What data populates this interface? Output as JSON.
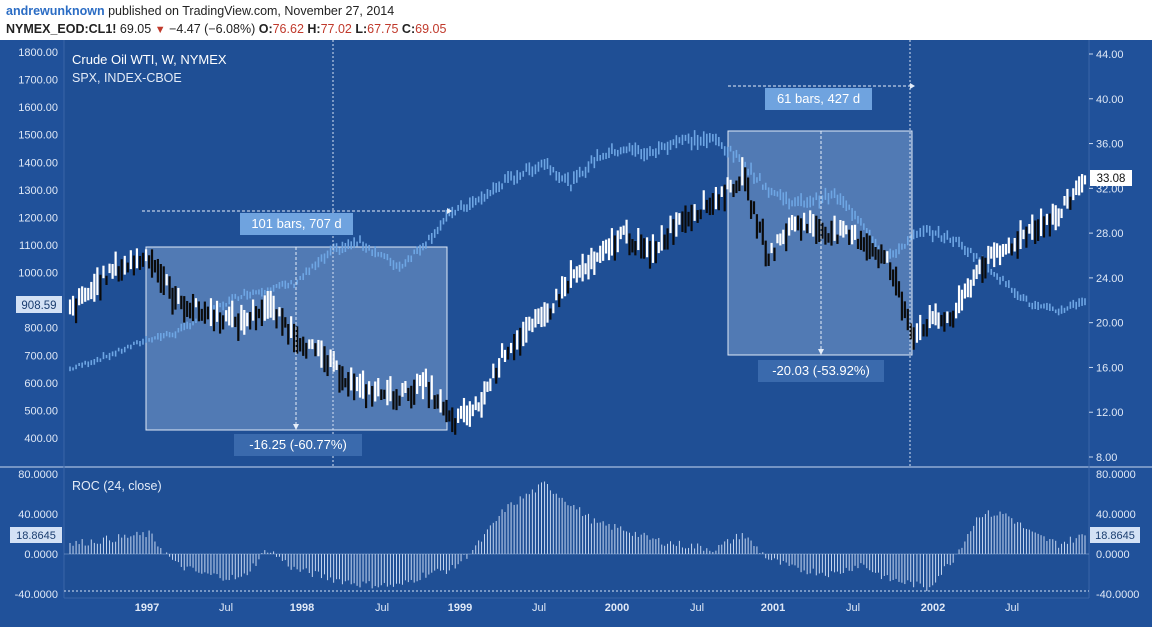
{
  "header": {
    "author": "andrewunknown",
    "published": "published on TradingView.com, November 27, 2014",
    "symbol": "NYMEX_EOD:CL1!",
    "last": "69.05",
    "change": "−4.47 (−6.08%)",
    "open_label": "O:",
    "open": "76.62",
    "high_label": "H:",
    "high": "77.02",
    "low_label": "L:",
    "low": "67.75",
    "close_label": "C:",
    "close": "69.05"
  },
  "colors": {
    "background": "#1f4f95",
    "bg_alt": "#20519a",
    "crude_up": "#ffffff",
    "crude_down": "#0b0b0b",
    "spx": "#6ea6e4",
    "box_fill": "#7a9fce",
    "label_bg": "#6fa3df",
    "roc": "#c5d6f0"
  },
  "legend": {
    "line1": "Crude Oil WTI, W, NYMEX",
    "line2": "SPX, INDEX-CBOE"
  },
  "measurements": {
    "m1_top": "101 bars, 707 d",
    "m1_bottom": "-16.25 (-60.77%)",
    "m2_top": "61 bars, 427 d",
    "m2_bottom": "-20.03 (-53.92%)"
  },
  "roc_title": "ROC (24, close)",
  "badges": {
    "spx_last": "908.59",
    "crude_last": "33.08",
    "roc_left": "18.8645",
    "roc_right": "18.8645"
  },
  "chart_data": [
    {
      "type": "bar",
      "title": "Crude Oil WTI, W, NYMEX",
      "series": [
        {
          "name": "Crude Oil WTI, W, NYMEX",
          "axis": "right",
          "x": [
            "1996-07",
            "1996-10",
            "1997-01",
            "1997-03",
            "1997-05",
            "1997-08",
            "1997-10",
            "1997-12",
            "1998-03",
            "1998-05",
            "1998-08",
            "1998-10",
            "1998-12",
            "1999-02",
            "1999-04",
            "1999-07",
            "1999-09",
            "1999-11",
            "2000-01",
            "2000-03",
            "2000-05",
            "2000-08",
            "2000-10",
            "2000-12",
            "2001-02",
            "2001-05",
            "2001-07",
            "2001-09",
            "2001-11",
            "2001-12",
            "2002-02",
            "2002-04",
            "2002-06",
            "2002-08",
            "2002-10",
            "2002-12"
          ],
          "values": [
            21.0,
            24.5,
            26.0,
            22.0,
            21.0,
            20.0,
            21.5,
            19.0,
            16.0,
            14.0,
            13.5,
            14.5,
            11.0,
            12.5,
            17.5,
            20.5,
            24.0,
            25.5,
            28.0,
            26.0,
            29.0,
            31.0,
            33.0,
            26.0,
            29.0,
            28.0,
            27.5,
            25.5,
            19.0,
            20.0,
            20.5,
            25.0,
            26.5,
            28.5,
            29.5,
            33.08
          ]
        },
        {
          "name": "SPX, INDEX-CBOE",
          "axis": "left",
          "x": [
            "1996-07",
            "1996-10",
            "1997-01",
            "1997-03",
            "1997-05",
            "1997-08",
            "1997-10",
            "1997-12",
            "1998-03",
            "1998-05",
            "1998-08",
            "1998-10",
            "1998-12",
            "1999-02",
            "1999-04",
            "1999-07",
            "1999-09",
            "1999-11",
            "2000-01",
            "2000-03",
            "2000-05",
            "2000-08",
            "2000-10",
            "2000-12",
            "2001-02",
            "2001-05",
            "2001-07",
            "2001-09",
            "2001-11",
            "2001-12",
            "2002-02",
            "2002-04",
            "2002-06",
            "2002-08",
            "2002-10",
            "2002-12"
          ],
          "values": [
            650,
            700,
            760,
            780,
            840,
            920,
            940,
            960,
            1080,
            1110,
            1020,
            1110,
            1220,
            1260,
            1330,
            1400,
            1320,
            1420,
            1450,
            1430,
            1480,
            1480,
            1400,
            1300,
            1250,
            1280,
            1190,
            1050,
            1130,
            1150,
            1120,
            1050,
            960,
            880,
            860,
            900
          ]
        }
      ],
      "ylim_left": [
        400,
        1800
      ],
      "ylim_right": [
        8,
        44
      ],
      "yticks_left": [
        "1800.00",
        "1700.00",
        "1600.00",
        "1500.00",
        "1400.00",
        "1300.00",
        "1200.00",
        "1100.00",
        "1000.00",
        "900.00",
        "800.00",
        "700.00",
        "600.00",
        "500.00",
        "400.00"
      ],
      "yticks_right": [
        "44.00",
        "40.00",
        "36.00",
        "32.00",
        "28.00",
        "24.00",
        "20.00",
        "16.00",
        "12.00",
        "8.00"
      ],
      "xticks": [
        "1997",
        "Jul",
        "1998",
        "Jul",
        "1999",
        "Jul",
        "2000",
        "Jul",
        "2001",
        "Jul",
        "2002",
        "Jul"
      ],
      "annotations": [
        {
          "text": "101 bars, 707 d",
          "kind": "date range"
        },
        {
          "text": "-16.25 (-60.77%)",
          "kind": "price range"
        },
        {
          "text": "61 bars, 427 d",
          "kind": "date range"
        },
        {
          "text": "-20.03 (-53.92%)",
          "kind": "price range"
        }
      ]
    },
    {
      "type": "bar",
      "title": "ROC (24, close)",
      "series": [
        {
          "name": "ROC (24, close)",
          "x": [
            "1996-07",
            "1996-10",
            "1997-01",
            "1997-03",
            "1997-05",
            "1997-08",
            "1997-10",
            "1997-12",
            "1998-03",
            "1998-05",
            "1998-08",
            "1998-10",
            "1998-12",
            "1999-02",
            "1999-04",
            "1999-07",
            "1999-09",
            "1999-11",
            "2000-01",
            "2000-03",
            "2000-05",
            "2000-08",
            "2000-10",
            "2000-12",
            "2001-02",
            "2001-05",
            "2001-07",
            "2001-09",
            "2001-11",
            "2001-12",
            "2002-02",
            "2002-04",
            "2002-06",
            "2002-08",
            "2002-10",
            "2002-12"
          ],
          "values": [
            10,
            15,
            20,
            -10,
            -20,
            -25,
            5,
            -15,
            -25,
            -30,
            -32,
            -20,
            -15,
            10,
            45,
            70,
            50,
            30,
            25,
            15,
            10,
            5,
            20,
            -5,
            -15,
            -20,
            -10,
            -25,
            -30,
            -35,
            -5,
            40,
            40,
            20,
            10,
            18.8645
          ]
        }
      ],
      "ylim": [
        -50,
        80
      ],
      "yticks": [
        "80.0000",
        "40.0000",
        "0.0000",
        "-40.0000"
      ]
    }
  ]
}
